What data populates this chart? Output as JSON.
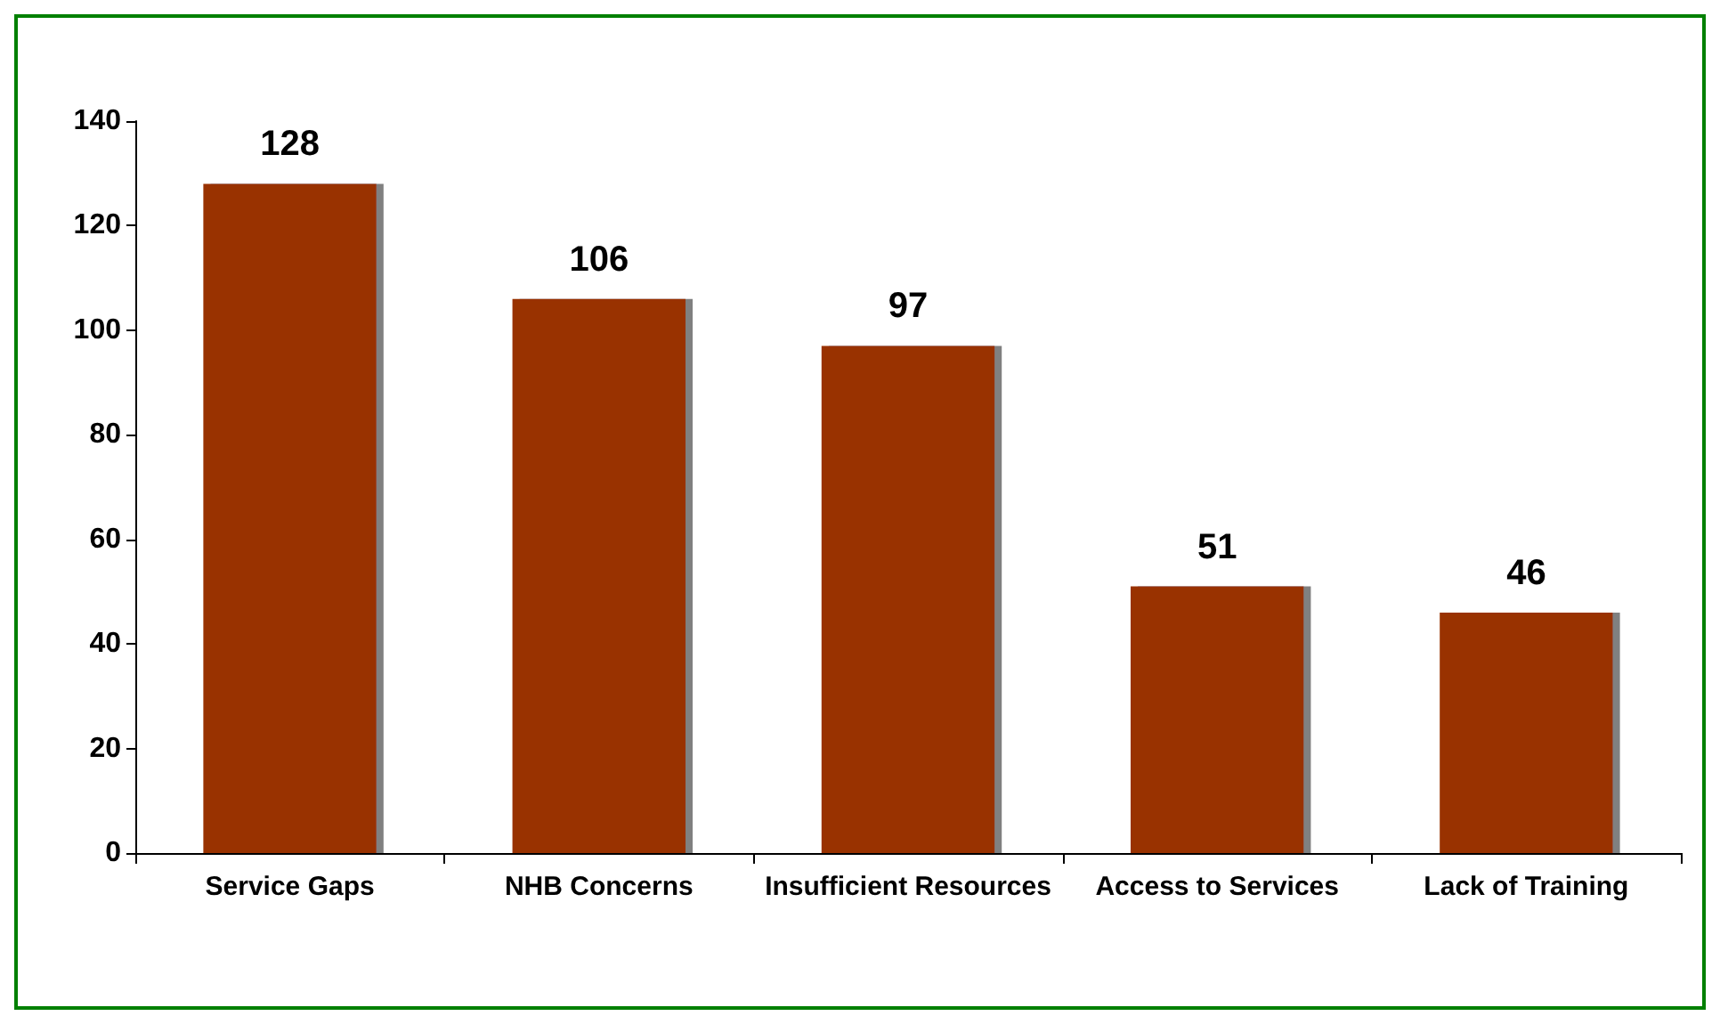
{
  "chart_data": {
    "type": "bar",
    "categories": [
      "Service Gaps",
      "NHB Concerns",
      "Insufficient Resources",
      "Access to Services",
      "Lack of Training"
    ],
    "values": [
      128,
      106,
      97,
      51,
      46
    ],
    "color": "#993300",
    "ylim": [
      0,
      140
    ],
    "yticks": [
      0,
      20,
      40,
      60,
      80,
      100,
      120,
      140
    ],
    "grid": false,
    "data_labels": true
  }
}
